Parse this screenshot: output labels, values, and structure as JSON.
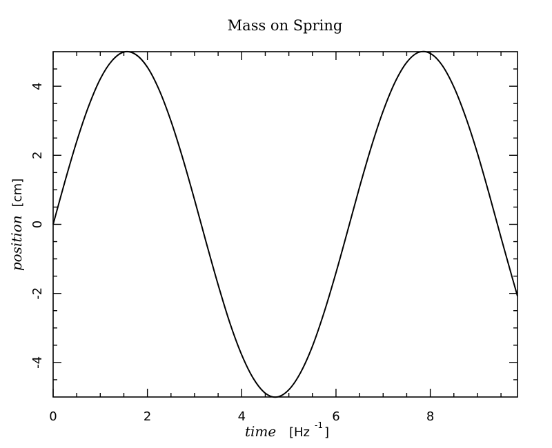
{
  "chart_data": {
    "type": "line",
    "title": "Mass on Spring",
    "xlabel": {
      "text": "time",
      "unit_open": "[Hz",
      "unit_sup": "-1",
      "unit_close": "]"
    },
    "ylabel": {
      "text": "position",
      "unit": "[cm]"
    },
    "xlim": [
      0,
      9.85
    ],
    "ylim": [
      -5,
      5
    ],
    "x_ticks": [
      0,
      2,
      4,
      6,
      8
    ],
    "y_ticks": [
      -4,
      -2,
      0,
      2,
      4
    ],
    "x_tick_labels": [
      "0",
      "2",
      "4",
      "6",
      "8"
    ],
    "y_tick_labels": [
      "-4",
      "-2",
      "0",
      "2",
      "4"
    ],
    "grid": false,
    "series": [
      {
        "x": [
          0,
          0.25,
          0.5,
          0.75,
          1.0,
          1.25,
          1.5,
          1.75,
          2.0,
          2.25,
          2.5,
          2.75,
          3.0,
          3.25,
          3.5,
          3.75,
          4.0,
          4.25,
          4.5,
          4.75,
          5.0,
          5.25,
          5.5,
          5.75,
          6.0,
          6.25,
          6.5,
          6.75,
          7.0,
          7.25,
          7.5,
          7.75,
          8.0,
          8.25,
          8.5,
          8.75,
          9.0,
          9.25,
          9.5,
          9.75,
          9.85
        ],
        "y": [
          0,
          1.24,
          2.4,
          3.41,
          4.21,
          4.74,
          4.99,
          4.92,
          4.55,
          3.89,
          2.99,
          1.91,
          0.71,
          -0.54,
          -1.75,
          -2.86,
          -3.78,
          -4.47,
          -4.89,
          -5.0,
          -4.79,
          -4.29,
          -3.53,
          -2.54,
          -1.4,
          -0.17,
          1.08,
          2.25,
          3.28,
          4.11,
          4.69,
          4.98,
          4.95,
          4.61,
          3.98,
          3.11,
          2.06,
          0.87,
          -0.38,
          -1.6,
          -2.08
        ]
      }
    ]
  }
}
